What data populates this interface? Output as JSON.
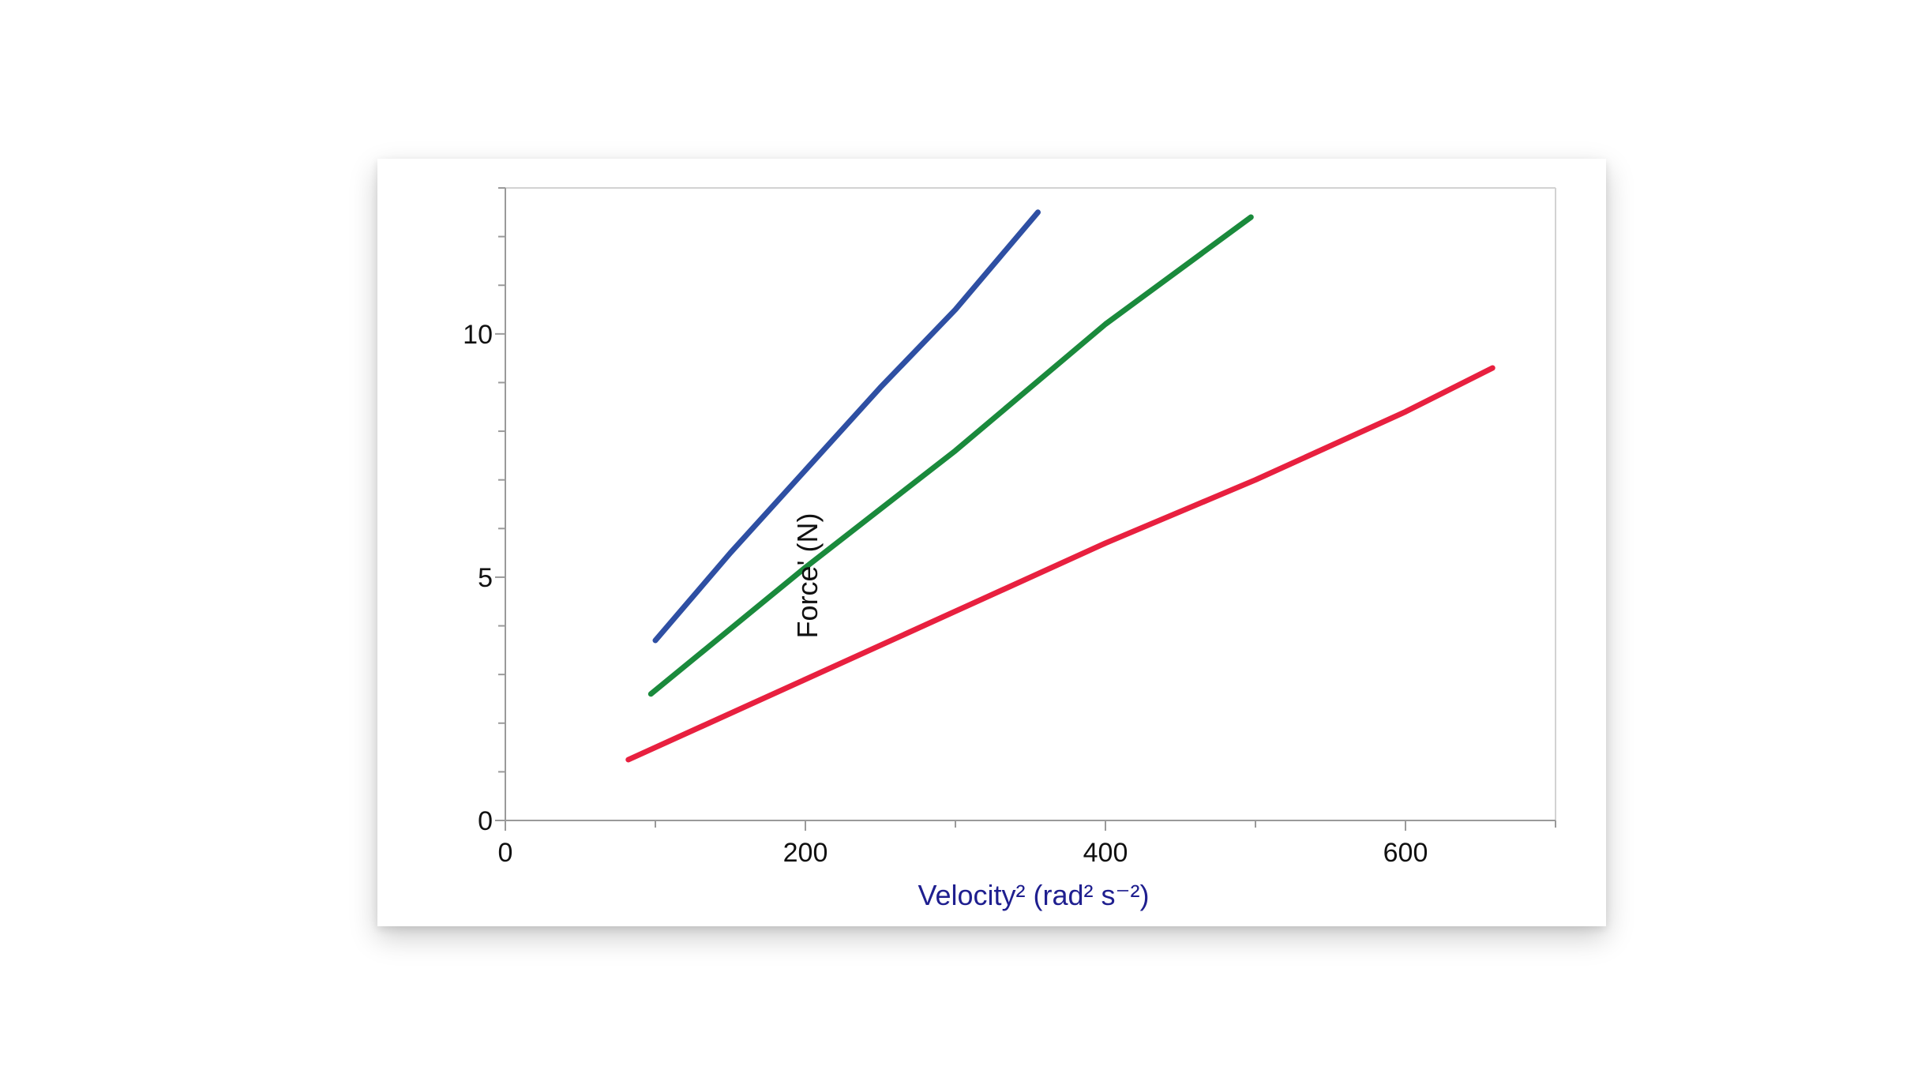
{
  "chart_data": {
    "type": "line",
    "title": "",
    "xlabel": "Velocity² (rad² s⁻²)",
    "ylabel": "Force' (N)",
    "xlim": [
      0,
      700
    ],
    "ylim": [
      0,
      13
    ],
    "x_ticks": [
      0,
      200,
      400,
      600
    ],
    "y_ticks": [
      0,
      5,
      10
    ],
    "grid": false,
    "legend": "none",
    "colors": {
      "xlabel": "#1f1f8f",
      "ylabel": "#111111",
      "axis": "#9a9a9a"
    },
    "series": [
      {
        "color": "#2e4fa3",
        "x": [
          100,
          150,
          200,
          250,
          300,
          355
        ],
        "y": [
          3.7,
          5.5,
          7.2,
          8.9,
          10.5,
          12.5
        ]
      },
      {
        "color": "#1a8a3c",
        "x": [
          97,
          200,
          300,
          400,
          497
        ],
        "y": [
          2.6,
          5.2,
          7.6,
          10.2,
          12.4
        ]
      },
      {
        "color": "#e8203f",
        "x": [
          82,
          200,
          300,
          400,
          500,
          600,
          658
        ],
        "y": [
          1.25,
          2.9,
          4.3,
          5.7,
          7.0,
          8.4,
          9.3
        ]
      }
    ]
  }
}
